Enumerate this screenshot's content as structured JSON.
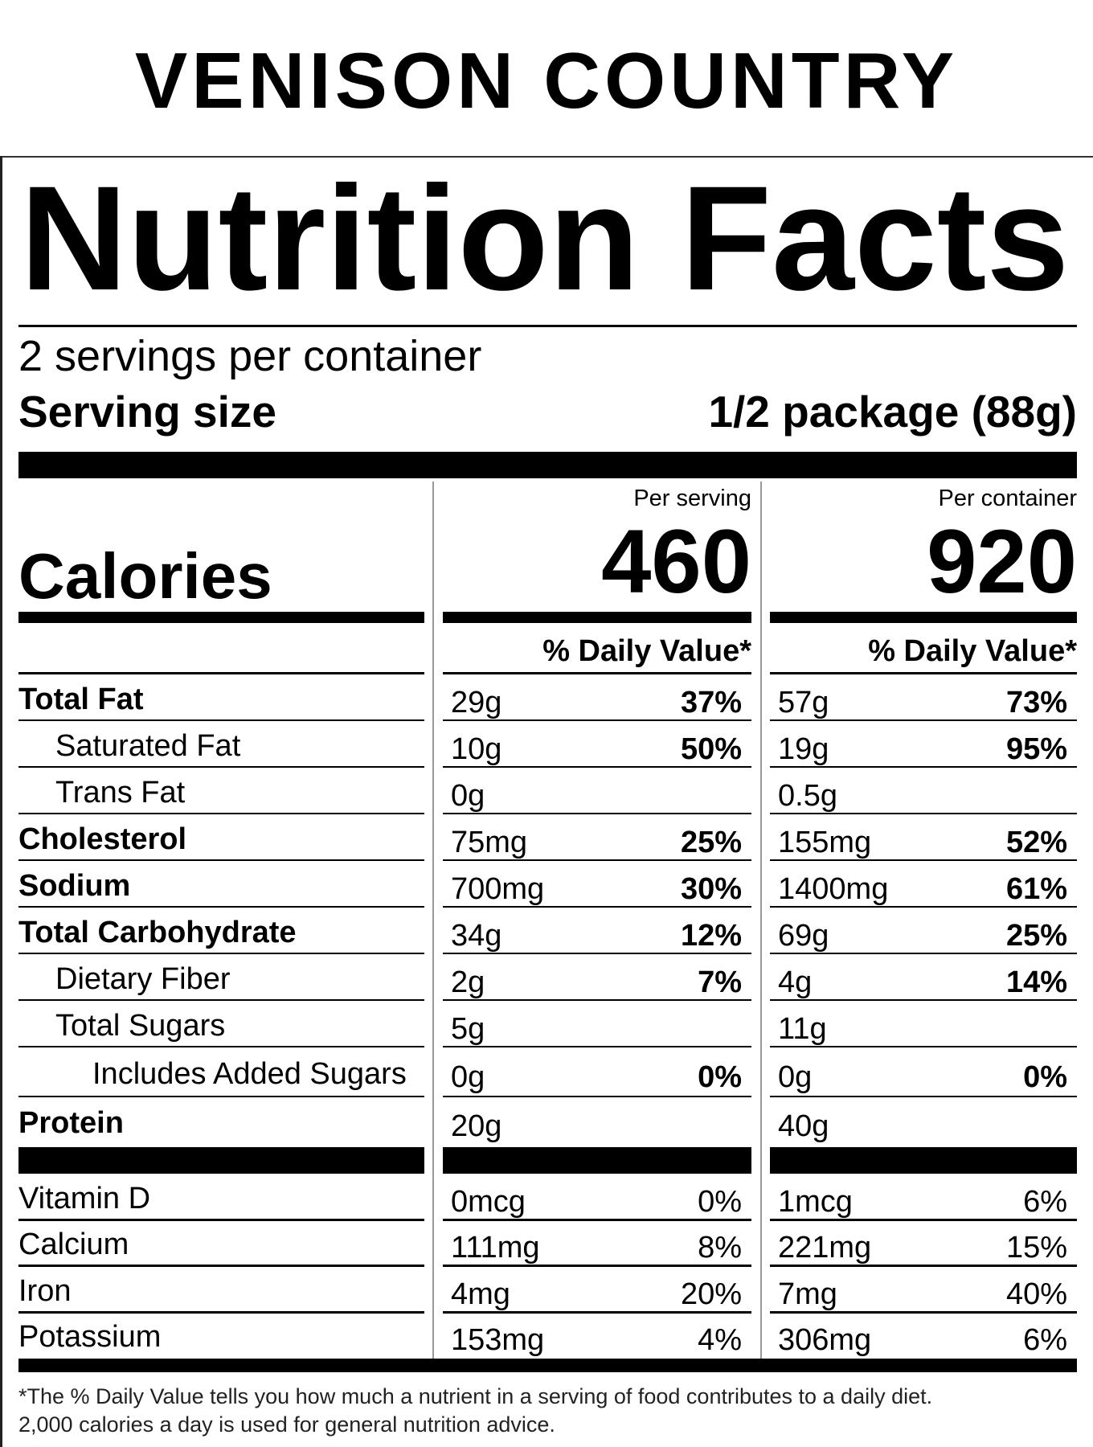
{
  "brand": "VENISON COUNTRY",
  "title": "Nutrition Facts",
  "servings_per_container": "2 servings per container",
  "serving_size_label": "Serving size",
  "serving_size_value": "1/2 package (88g)",
  "calories_label": "Calories",
  "columns": [
    {
      "header": "Per serving",
      "calories": "460",
      "dv_header": "% Daily Value*"
    },
    {
      "header": "Per container",
      "calories": "920",
      "dv_header": "% Daily Value*"
    }
  ],
  "nutrients": [
    {
      "label": "Total Fat",
      "bold": true,
      "indent": 0,
      "values": [
        {
          "amount": "29g",
          "dv": "37%"
        },
        {
          "amount": "57g",
          "dv": "73%"
        }
      ]
    },
    {
      "label": "Saturated Fat",
      "bold": false,
      "indent": 1,
      "values": [
        {
          "amount": "10g",
          "dv": "50%"
        },
        {
          "amount": "19g",
          "dv": "95%"
        }
      ]
    },
    {
      "label": "Trans Fat",
      "bold": false,
      "indent": 1,
      "values": [
        {
          "amount": "0g",
          "dv": ""
        },
        {
          "amount": "0.5g",
          "dv": ""
        }
      ]
    },
    {
      "label": "Cholesterol",
      "bold": true,
      "indent": 0,
      "values": [
        {
          "amount": "75mg",
          "dv": "25%"
        },
        {
          "amount": "155mg",
          "dv": "52%"
        }
      ]
    },
    {
      "label": "Sodium",
      "bold": true,
      "indent": 0,
      "values": [
        {
          "amount": "700mg",
          "dv": "30%"
        },
        {
          "amount": "1400mg",
          "dv": "61%"
        }
      ]
    },
    {
      "label": "Total Carbohydrate",
      "bold": true,
      "indent": 0,
      "values": [
        {
          "amount": "34g",
          "dv": "12%"
        },
        {
          "amount": "69g",
          "dv": "25%"
        }
      ]
    },
    {
      "label": "Dietary Fiber",
      "bold": false,
      "indent": 1,
      "values": [
        {
          "amount": "2g",
          "dv": "7%"
        },
        {
          "amount": "4g",
          "dv": "14%"
        }
      ]
    },
    {
      "label": "Total Sugars",
      "bold": false,
      "indent": 1,
      "values": [
        {
          "amount": "5g",
          "dv": ""
        },
        {
          "amount": "11g",
          "dv": ""
        }
      ]
    },
    {
      "label": "Includes Added Sugars",
      "bold": false,
      "indent": 2,
      "values": [
        {
          "amount": "0g",
          "dv": "0%"
        },
        {
          "amount": "0g",
          "dv": "0%"
        }
      ]
    },
    {
      "label": "Protein",
      "bold": true,
      "indent": 0,
      "values": [
        {
          "amount": "20g",
          "dv": ""
        },
        {
          "amount": "40g",
          "dv": ""
        }
      ]
    }
  ],
  "micronutrients": [
    {
      "label": "Vitamin D",
      "values": [
        {
          "amount": "0mcg",
          "dv": "0%"
        },
        {
          "amount": "1mcg",
          "dv": "6%"
        }
      ]
    },
    {
      "label": "Calcium",
      "values": [
        {
          "amount": "111mg",
          "dv": "8%"
        },
        {
          "amount": "221mg",
          "dv": "15%"
        }
      ]
    },
    {
      "label": "Iron",
      "values": [
        {
          "amount": "4mg",
          "dv": "20%"
        },
        {
          "amount": "7mg",
          "dv": "40%"
        }
      ]
    },
    {
      "label": "Potassium",
      "values": [
        {
          "amount": "153mg",
          "dv": "4%"
        },
        {
          "amount": "306mg",
          "dv": "6%"
        }
      ]
    }
  ],
  "footnote": [
    "*The % Daily Value tells you how much a nutrient in a serving of food contributes to a daily diet.",
    "2,000 calories a day is used for general nutrition advice."
  ]
}
